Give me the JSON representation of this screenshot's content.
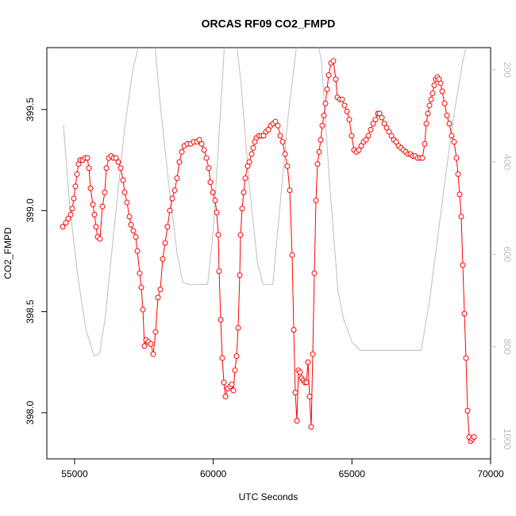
{
  "chart_data": {
    "type": "line",
    "title": "ORCAS RF09 CO2_FMPD",
    "x_label": "UTC Seconds",
    "y_label": "CO2_FMPD",
    "xlim": [
      54000,
      70000
    ],
    "ylim": [
      397.772,
      399.806
    ],
    "y2lim": [
      1043,
      152
    ],
    "xticks": [
      55000,
      60000,
      65000,
      70000
    ],
    "yticks": [
      {
        "value": 398,
        "label": "398.0"
      },
      398.5,
      {
        "value": 399,
        "label": "399.0"
      },
      399.5
    ],
    "y2ticks": [
      200,
      400,
      600,
      800,
      1000
    ],
    "series": [
      {
        "color": "#bebebe",
        "axis": "y2",
        "marker": false,
        "x": [
          54600,
          54800,
          55100,
          55400,
          55700,
          55900,
          56100,
          56400,
          56800,
          57100,
          57300,
          57500,
          57700,
          57900,
          58100,
          58400,
          58700,
          58900,
          59100,
          59800,
          60000,
          60200,
          60400,
          60600,
          60800,
          61000,
          61300,
          61600,
          61800,
          62150,
          62400,
          62700,
          63000,
          63300,
          63700,
          63900,
          64200,
          64500,
          64700,
          65000,
          65300,
          67500,
          67800,
          68100,
          68400,
          68700,
          69000,
          69200
        ],
        "values": [
          320,
          480,
          640,
          760,
          820,
          815,
          740,
          560,
          330,
          200,
          150,
          100,
          100,
          150,
          280,
          450,
          600,
          660,
          665,
          665,
          550,
          350,
          150,
          100,
          120,
          230,
          450,
          620,
          665,
          665,
          500,
          300,
          150,
          100,
          120,
          180,
          450,
          680,
          740,
          790,
          808,
          808,
          700,
          560,
          420,
          290,
          180,
          130
        ]
      },
      {
        "color": "#ff0000",
        "marker": true,
        "x": [
          54572,
          54687,
          54773,
          54859,
          54916,
          54973,
          55030,
          55088,
          55145,
          55202,
          55288,
          55374,
          55460,
          55517,
          55574,
          55660,
          55717,
          55774,
          55832,
          55917,
          56004,
          56089,
          56147,
          56233,
          56318,
          56404,
          56490,
          56576,
          56662,
          56748,
          56805,
          56891,
          56977,
          57034,
          57120,
          57206,
          57263,
          57349,
          57406,
          57463,
          57521,
          57578,
          57664,
          57750,
          57835,
          57921,
          58007,
          58093,
          58179,
          58265,
          58350,
          58436,
          58522,
          58608,
          58694,
          58780,
          58866,
          58952,
          59066,
          59181,
          59295,
          59410,
          59496,
          59582,
          59667,
          59753,
          59839,
          59896,
          59982,
          60068,
          60125,
          60183,
          60211,
          60268,
          60326,
          60383,
          60440,
          60526,
          60612,
          60669,
          60726,
          60783,
          60841,
          60898,
          60955,
          60984,
          61041,
          61098,
          61156,
          61242,
          61299,
          61385,
          61442,
          61499,
          61556,
          61642,
          61728,
          61814,
          61900,
          61986,
          62072,
          62157,
          62243,
          62329,
          62415,
          62501,
          62587,
          62673,
          62759,
          62845,
          62902,
          62959,
          63016,
          63073,
          63130,
          63188,
          63245,
          63302,
          63359,
          63416,
          63474,
          63531,
          63588,
          63646,
          63703,
          63760,
          63817,
          63875,
          63932,
          63989,
          64046,
          64104,
          64161,
          64247,
          64333,
          64419,
          64476,
          64562,
          64648,
          64733,
          64819,
          64905,
          64991,
          65077,
          65163,
          65249,
          65335,
          65421,
          65507,
          65593,
          65678,
          65764,
          65850,
          65936,
          65994,
          66079,
          66165,
          66251,
          66337,
          66423,
          66509,
          66594,
          66680,
          66766,
          66852,
          66938,
          67024,
          67109,
          67195,
          67281,
          67367,
          67453,
          67539,
          67625,
          67682,
          67739,
          67796,
          67854,
          67911,
          67968,
          68026,
          68083,
          68140,
          68197,
          68255,
          68340,
          68426,
          68512,
          68598,
          68684,
          68770,
          68827,
          68884,
          68941,
          68998,
          69056,
          69113,
          69170,
          69227,
          69285,
          69342,
          69399
        ],
        "values": [
          398.92,
          398.94,
          398.96,
          398.98,
          399.01,
          399.06,
          399.12,
          399.18,
          399.23,
          399.25,
          399.25,
          399.26,
          399.26,
          399.21,
          399.11,
          399.03,
          398.98,
          398.92,
          398.87,
          398.86,
          399.02,
          399.09,
          399.21,
          399.26,
          399.27,
          399.26,
          399.26,
          399.24,
          399.21,
          399.15,
          399.09,
          399.04,
          398.97,
          398.93,
          398.9,
          398.87,
          398.8,
          398.69,
          398.62,
          398.51,
          398.33,
          398.36,
          398.35,
          398.34,
          398.29,
          398.4,
          398.57,
          398.61,
          398.76,
          398.84,
          398.92,
          399.0,
          399.06,
          399.1,
          399.16,
          399.24,
          399.29,
          399.32,
          399.33,
          399.33,
          399.34,
          399.34,
          399.35,
          399.33,
          399.3,
          399.26,
          399.21,
          399.14,
          399.09,
          399.05,
          398.99,
          398.88,
          398.7,
          398.46,
          398.27,
          398.15,
          398.08,
          398.12,
          398.13,
          398.14,
          398.11,
          398.21,
          398.28,
          398.42,
          398.68,
          398.88,
          399.01,
          399.09,
          399.16,
          399.22,
          399.24,
          399.28,
          399.31,
          399.34,
          399.36,
          399.37,
          399.37,
          399.37,
          399.39,
          399.4,
          399.42,
          399.43,
          399.44,
          399.42,
          399.37,
          399.34,
          399.28,
          399.22,
          399.1,
          398.78,
          398.41,
          398.1,
          397.96,
          398.21,
          398.2,
          398.17,
          398.16,
          398.15,
          398.15,
          398.25,
          398.08,
          397.93,
          398.29,
          398.69,
          399.05,
          399.23,
          399.29,
          399.35,
          399.42,
          399.47,
          399.53,
          399.6,
          399.67,
          399.73,
          399.74,
          399.65,
          399.56,
          399.55,
          399.55,
          399.52,
          399.49,
          399.45,
          399.37,
          399.3,
          399.29,
          399.3,
          399.32,
          399.34,
          399.35,
          399.37,
          399.4,
          399.43,
          399.45,
          399.48,
          399.48,
          399.46,
          399.43,
          399.41,
          399.39,
          399.37,
          399.35,
          399.34,
          399.32,
          399.31,
          399.3,
          399.29,
          399.28,
          399.28,
          399.27,
          399.27,
          399.26,
          399.26,
          399.26,
          399.33,
          399.43,
          399.48,
          399.52,
          399.55,
          399.58,
          399.62,
          399.65,
          399.66,
          399.65,
          399.63,
          399.59,
          399.53,
          399.47,
          399.43,
          399.37,
          399.34,
          399.26,
          399.18,
          399.08,
          398.97,
          398.73,
          398.49,
          398.27,
          398.01,
          397.88,
          397.86,
          397.87,
          397.88
        ]
      }
    ]
  }
}
